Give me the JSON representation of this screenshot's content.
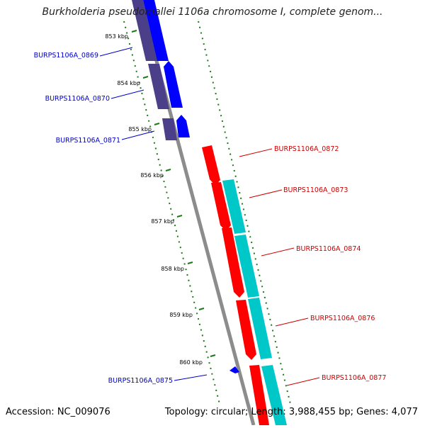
{
  "title": "Burkholderia pseudomallei 1106a chromosome I, complete genom...",
  "footer": {
    "accession": "Accession: NC_009076",
    "stats": "Topology: circular; Length: 3,988,455 bp; Genes: 4,077"
  },
  "colors": {
    "forward_gene": "#ff0000",
    "reverse_gene": "#0000ff",
    "forward_cds": "#00c8c8",
    "reverse_cds": "#4a3f88",
    "backbone": "#8c8c8c",
    "tick": "#1a7a1a"
  },
  "ticks": [
    "853 kbp",
    "854 kbp",
    "855 kbp",
    "856 kbp",
    "857 kbp",
    "858 kbp",
    "859 kbp",
    "860 kbp"
  ],
  "gene_labels": [
    {
      "text": "BURPS1106A_0869",
      "strand": "reverse"
    },
    {
      "text": "BURPS1106A_0870",
      "strand": "reverse"
    },
    {
      "text": "BURPS1106A_0871",
      "strand": "reverse"
    },
    {
      "text": "BURPS1106A_0872",
      "strand": "forward"
    },
    {
      "text": "BURPS1106A_0873",
      "strand": "forward"
    },
    {
      "text": "BURPS1106A_0874",
      "strand": "forward"
    },
    {
      "text": "BURPS1106A_0876",
      "strand": "forward"
    },
    {
      "text": "BURPS1106A_0875",
      "strand": "reverse"
    },
    {
      "text": "BURPS1106A_0877",
      "strand": "forward"
    }
  ]
}
